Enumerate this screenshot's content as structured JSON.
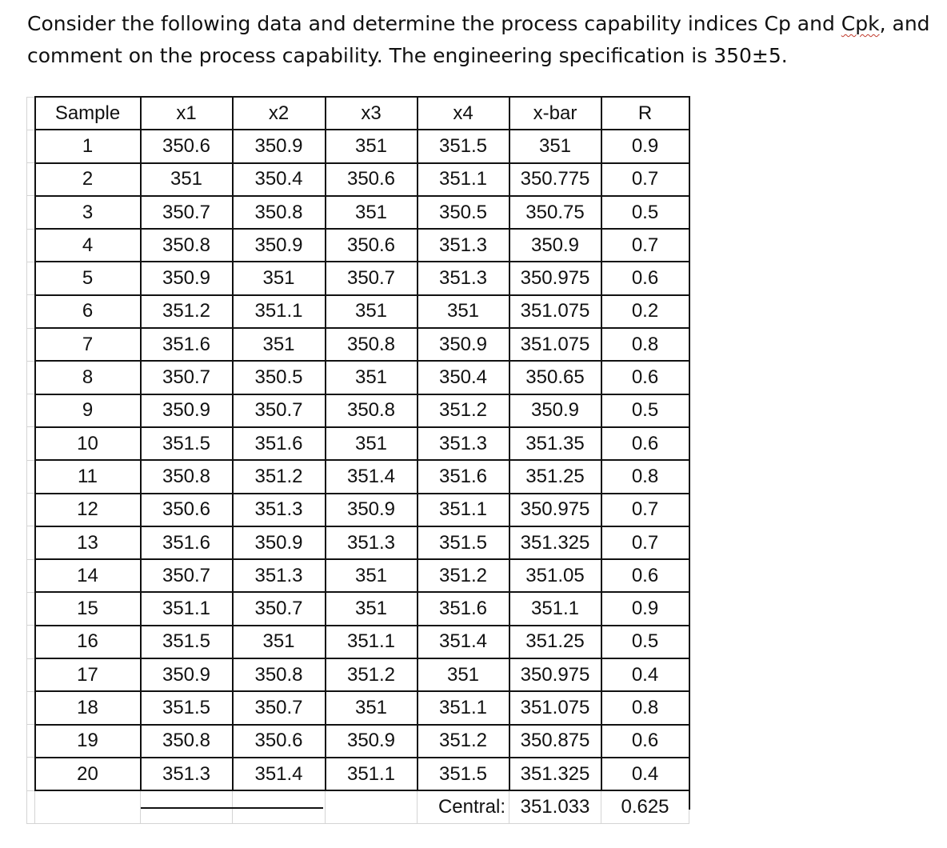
{
  "question": {
    "line1_pre": "Consider the following data and determine the process capability indices Cp and ",
    "line1_cpk": "Cpk",
    "line1_post": ", and",
    "line2": "comment on the process capability. The engineering specification is 350±5."
  },
  "table": {
    "headers": [
      "Sample",
      "x1",
      "x2",
      "x3",
      "x4",
      "x-bar",
      "R"
    ],
    "rows": [
      [
        "1",
        "350.6",
        "350.9",
        "351",
        "351.5",
        "351",
        "0.9"
      ],
      [
        "2",
        "351",
        "350.4",
        "350.6",
        "351.1",
        "350.775",
        "0.7"
      ],
      [
        "3",
        "350.7",
        "350.8",
        "351",
        "350.5",
        "350.75",
        "0.5"
      ],
      [
        "4",
        "350.8",
        "350.9",
        "350.6",
        "351.3",
        "350.9",
        "0.7"
      ],
      [
        "5",
        "350.9",
        "351",
        "350.7",
        "351.3",
        "350.975",
        "0.6"
      ],
      [
        "6",
        "351.2",
        "351.1",
        "351",
        "351",
        "351.075",
        "0.2"
      ],
      [
        "7",
        "351.6",
        "351",
        "350.8",
        "350.9",
        "351.075",
        "0.8"
      ],
      [
        "8",
        "350.7",
        "350.5",
        "351",
        "350.4",
        "350.65",
        "0.6"
      ],
      [
        "9",
        "350.9",
        "350.7",
        "350.8",
        "351.2",
        "350.9",
        "0.5"
      ],
      [
        "10",
        "351.5",
        "351.6",
        "351",
        "351.3",
        "351.35",
        "0.6"
      ],
      [
        "11",
        "350.8",
        "351.2",
        "351.4",
        "351.6",
        "351.25",
        "0.8"
      ],
      [
        "12",
        "350.6",
        "351.3",
        "350.9",
        "351.1",
        "350.975",
        "0.7"
      ],
      [
        "13",
        "351.6",
        "350.9",
        "351.3",
        "351.5",
        "351.325",
        "0.7"
      ],
      [
        "14",
        "350.7",
        "351.3",
        "351",
        "351.2",
        "351.05",
        "0.6"
      ],
      [
        "15",
        "351.1",
        "350.7",
        "351",
        "351.6",
        "351.1",
        "0.9"
      ],
      [
        "16",
        "351.5",
        "351",
        "351.1",
        "351.4",
        "351.25",
        "0.5"
      ],
      [
        "17",
        "350.9",
        "350.8",
        "351.2",
        "351",
        "350.975",
        "0.4"
      ],
      [
        "18",
        "351.5",
        "350.7",
        "351",
        "351.1",
        "351.075",
        "0.8"
      ],
      [
        "19",
        "350.8",
        "350.6",
        "350.9",
        "351.2",
        "350.875",
        "0.6"
      ],
      [
        "20",
        "351.3",
        "351.4",
        "351.1",
        "351.5",
        "351.325",
        "0.4"
      ]
    ],
    "central": {
      "label": "Central:",
      "xbar": "351.033",
      "r": "0.625"
    }
  }
}
